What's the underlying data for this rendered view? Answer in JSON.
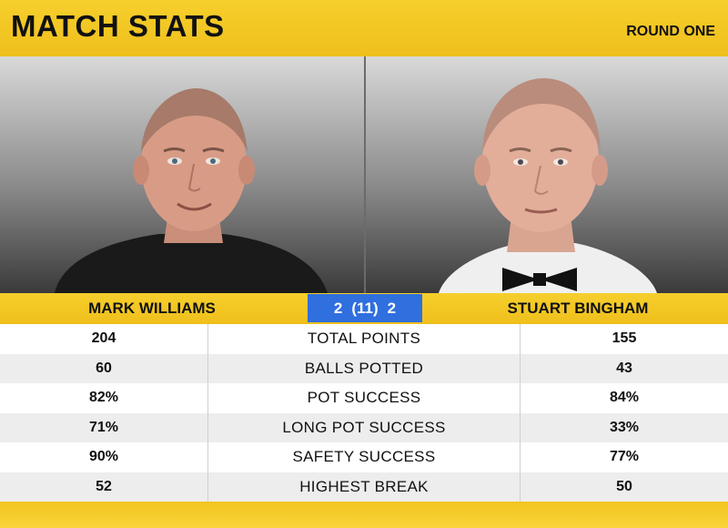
{
  "header": {
    "title": "MATCH STATS",
    "round": "ROUND ONE"
  },
  "players": {
    "left": {
      "name": "MARK WILLIAMS"
    },
    "right": {
      "name": "STUART BINGHAM"
    }
  },
  "score": {
    "left": "2",
    "frames": "(11)",
    "right": "2"
  },
  "colors": {
    "accent": "#f2c31f",
    "score_box": "#2f6fde"
  },
  "stats": [
    {
      "label": "TOTAL POINTS",
      "left": "204",
      "right": "155"
    },
    {
      "label": "BALLS POTTED",
      "left": "60",
      "right": "43"
    },
    {
      "label": "POT SUCCESS",
      "left": "82%",
      "right": "84%"
    },
    {
      "label": "LONG POT SUCCESS",
      "left": "71%",
      "right": "33%"
    },
    {
      "label": "SAFETY SUCCESS",
      "left": "90%",
      "right": "77%"
    },
    {
      "label": "HIGHEST BREAK",
      "left": "52",
      "right": "50"
    }
  ]
}
